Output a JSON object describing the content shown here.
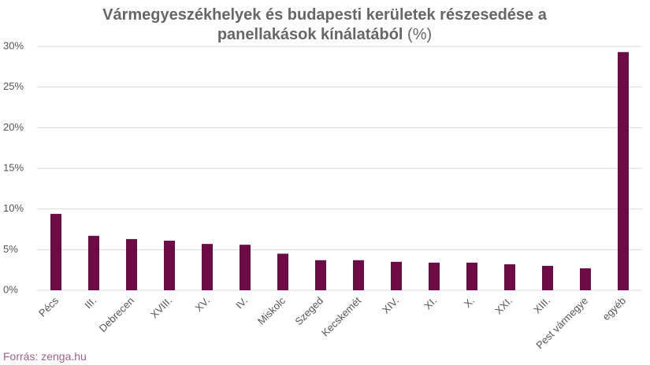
{
  "chart_data": {
    "type": "bar",
    "title": [
      "Vármegyeszékhelyek és budapesti kerületek részesedése a",
      "panellakások kínálatából"
    ],
    "title_suffix": "(%)",
    "source": "Forrás: zenga.hu",
    "categories": [
      "Pécs",
      "III.",
      "Debrecen",
      "XVIII.",
      "XV.",
      "IV.",
      "Miskolc",
      "Szeged",
      "Kecskemét",
      "XIV.",
      "XI.",
      "X.",
      "XXI.",
      "XIII.",
      "Pest vármegye",
      "egyéb"
    ],
    "values": [
      9.4,
      6.7,
      6.3,
      6.1,
      5.7,
      5.6,
      4.5,
      3.7,
      3.7,
      3.5,
      3.4,
      3.4,
      3.2,
      3.0,
      2.7,
      29.3
    ],
    "color": "#6d0b47",
    "ylim": [
      0,
      30
    ],
    "yticks": [
      {
        "value": 0,
        "label": "0%"
      },
      {
        "value": 5,
        "label": "5%"
      },
      {
        "value": 10,
        "label": "10%"
      },
      {
        "value": 15,
        "label": "15%"
      },
      {
        "value": 20,
        "label": "20%"
      },
      {
        "value": 25,
        "label": "25%"
      },
      {
        "value": 30,
        "label": "30%"
      }
    ],
    "grid": true
  }
}
